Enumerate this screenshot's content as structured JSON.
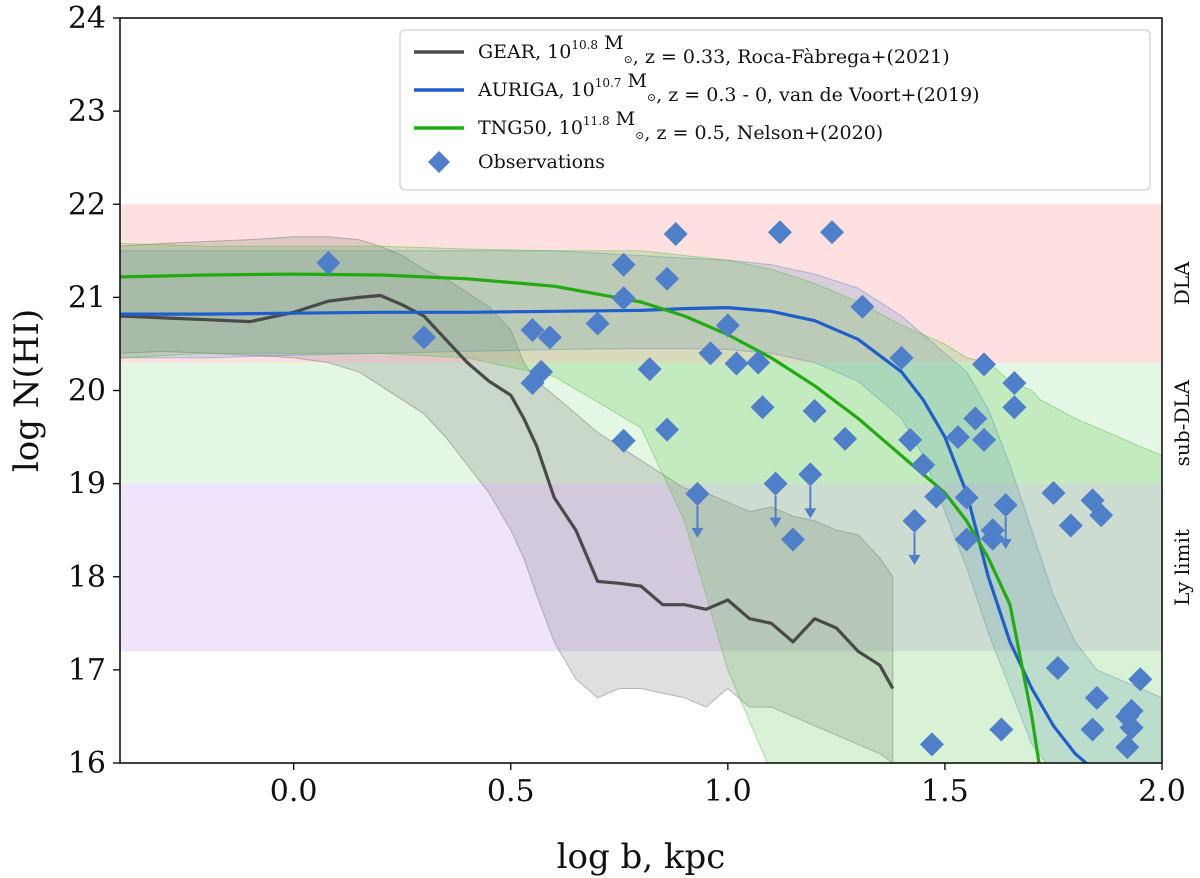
{
  "chart_data": {
    "type": "line",
    "xlabel": "log b, kpc",
    "ylabel": "log N(HI)",
    "xlim": [
      -0.4,
      2.0
    ],
    "ylim": [
      16,
      24
    ],
    "xticks": [
      0.0,
      0.5,
      1.0,
      1.5,
      2.0
    ],
    "xtick_labels": [
      "0.0",
      "0.5",
      "1.0",
      "1.5",
      "2.0"
    ],
    "yticks": [
      16,
      17,
      18,
      19,
      20,
      21,
      22,
      23,
      24
    ],
    "ytick_labels": [
      "16",
      "17",
      "18",
      "19",
      "20",
      "21",
      "22",
      "23",
      "24"
    ],
    "bands": [
      {
        "name": "DLA",
        "label": "DLA",
        "y0": 20.3,
        "y1": 22.0,
        "color": "#ffe0e0"
      },
      {
        "name": "sub-DLA",
        "label": "sub-DLA",
        "y0": 19.0,
        "y1": 20.3,
        "color": "#e4f7e4"
      },
      {
        "name": "Ly limit",
        "label": "Ly limit",
        "y0": 17.2,
        "y1": 19.0,
        "color": "#efe4fb"
      }
    ],
    "series": [
      {
        "name": "GEAR",
        "color": "#4a4a4a",
        "legend": {
          "prefix": "GEAR, 10",
          "sup": "10.8",
          "mid": " M",
          "sub": "⊙",
          "suffix": ", z = 0.33, Roca-Fàbrega+(2021)"
        },
        "x": [
          -0.4,
          -0.3,
          -0.2,
          -0.1,
          0.0,
          0.08,
          0.15,
          0.2,
          0.25,
          0.3,
          0.35,
          0.4,
          0.45,
          0.5,
          0.53,
          0.56,
          0.6,
          0.65,
          0.7,
          0.75,
          0.8,
          0.85,
          0.9,
          0.95,
          1.0,
          1.05,
          1.1,
          1.15,
          1.2,
          1.25,
          1.3,
          1.35,
          1.38
        ],
        "y": [
          20.8,
          20.78,
          20.76,
          20.74,
          20.84,
          20.96,
          21.0,
          21.02,
          20.92,
          20.8,
          20.55,
          20.3,
          20.1,
          19.95,
          19.7,
          19.4,
          18.85,
          18.5,
          17.95,
          17.93,
          17.9,
          17.7,
          17.7,
          17.65,
          17.75,
          17.55,
          17.5,
          17.3,
          17.55,
          17.45,
          17.2,
          17.05,
          16.8
        ],
        "band_upper": [
          21.55,
          21.58,
          21.6,
          21.62,
          21.65,
          21.65,
          21.62,
          21.55,
          21.45,
          21.3,
          21.2,
          21.05,
          20.9,
          20.65,
          20.3,
          20.1,
          19.95,
          19.75,
          19.55,
          19.4,
          19.25,
          19.1,
          18.95,
          18.9,
          18.8,
          18.7,
          18.75,
          18.65,
          18.6,
          18.5,
          18.45,
          18.2,
          18.0
        ],
        "band_lower": [
          20.4,
          20.42,
          20.4,
          20.38,
          20.35,
          20.3,
          20.2,
          20.05,
          19.9,
          19.75,
          19.5,
          19.2,
          18.9,
          18.5,
          18.2,
          17.8,
          17.3,
          16.9,
          16.7,
          16.8,
          16.8,
          16.75,
          16.7,
          16.6,
          16.8,
          16.6,
          16.6,
          16.5,
          16.4,
          16.3,
          16.2,
          16.1,
          16.0
        ]
      },
      {
        "name": "AURIGA",
        "color": "#1f5fcc",
        "legend": {
          "prefix": "AURIGA, 10",
          "sup": "10.7",
          "mid": " M",
          "sub": "⊙",
          "suffix": ", z = 0.3 - 0, van de Voort+(2019)"
        },
        "x": [
          -0.4,
          -0.2,
          0.0,
          0.2,
          0.4,
          0.6,
          0.8,
          0.9,
          1.0,
          1.1,
          1.2,
          1.3,
          1.4,
          1.45,
          1.5,
          1.55,
          1.6,
          1.65,
          1.7,
          1.75,
          1.8,
          1.85
        ],
        "y": [
          20.82,
          20.82,
          20.83,
          20.84,
          20.84,
          20.85,
          20.86,
          20.88,
          20.89,
          20.85,
          20.75,
          20.55,
          20.2,
          19.9,
          19.5,
          18.9,
          18.0,
          17.3,
          16.8,
          16.4,
          16.1,
          15.9
        ],
        "band_upper": [
          21.5,
          21.5,
          21.5,
          21.5,
          21.5,
          21.5,
          21.45,
          21.42,
          21.4,
          21.35,
          21.25,
          21.1,
          20.8,
          20.6,
          20.4,
          20.2,
          19.8,
          19.2,
          18.5,
          17.8,
          17.3,
          17.0
        ],
        "band_lower": [
          20.35,
          20.35,
          20.38,
          20.4,
          20.42,
          20.44,
          20.45,
          20.45,
          20.44,
          20.4,
          20.3,
          20.1,
          19.7,
          19.3,
          18.7,
          18.1,
          17.4,
          16.8,
          16.2,
          15.9,
          15.8,
          15.7
        ]
      },
      {
        "name": "TNG50",
        "color": "#22aa11",
        "legend": {
          "prefix": "TNG50, 10",
          "sup": "11.8",
          "mid": " M",
          "sub": "⊙",
          "suffix": ", z = 0.5, Nelson+(2020)"
        },
        "x": [
          -0.4,
          -0.2,
          0.0,
          0.2,
          0.4,
          0.6,
          0.8,
          0.9,
          1.0,
          1.1,
          1.2,
          1.3,
          1.4,
          1.5,
          1.55,
          1.6,
          1.65,
          1.7,
          1.72
        ],
        "y": [
          21.22,
          21.24,
          21.25,
          21.24,
          21.2,
          21.12,
          20.95,
          20.8,
          20.6,
          20.35,
          20.05,
          19.7,
          19.3,
          18.9,
          18.6,
          18.2,
          17.7,
          16.5,
          15.9
        ],
        "band_upper": [
          21.58,
          21.55,
          21.55,
          21.55,
          21.52,
          21.5,
          21.5,
          21.45,
          21.4,
          21.3,
          21.15,
          20.95,
          20.7,
          20.5,
          20.35,
          20.3,
          20.1,
          20.0,
          19.9
        ],
        "band_lower": [
          20.35,
          20.4,
          20.4,
          20.4,
          20.35,
          20.15,
          19.6,
          18.6,
          17.0,
          15.9,
          15.9,
          15.9,
          15.9,
          15.9,
          15.9,
          15.9,
          15.9,
          15.9,
          15.9
        ]
      }
    ],
    "extra_band_points": {
      "tng_upper_tail": {
        "x": [
          1.72,
          1.8,
          1.9,
          2.0
        ],
        "y": [
          19.85,
          19.7,
          19.5,
          19.3
        ]
      },
      "tng_lower_tail": {
        "x": [
          1.72,
          1.8,
          1.9,
          2.0
        ],
        "y": [
          15.9,
          15.9,
          15.9,
          15.9
        ]
      },
      "auriga_upper_tail": {
        "x": [
          1.85,
          1.9,
          2.0
        ],
        "y": [
          17.0,
          16.9,
          16.7
        ]
      },
      "auriga_lower_tail": {
        "x": [
          1.85,
          1.9,
          2.0
        ],
        "y": [
          15.7,
          15.7,
          15.7
        ]
      }
    },
    "observations": {
      "name": "Observations",
      "legend": "Observations",
      "color": "#4f7fc8",
      "points": [
        {
          "x": 0.08,
          "y": 21.37
        },
        {
          "x": 0.3,
          "y": 20.57
        },
        {
          "x": 0.55,
          "y": 20.65
        },
        {
          "x": 0.55,
          "y": 20.08
        },
        {
          "x": 0.57,
          "y": 20.2
        },
        {
          "x": 0.59,
          "y": 20.57
        },
        {
          "x": 0.7,
          "y": 20.72
        },
        {
          "x": 0.76,
          "y": 21.35
        },
        {
          "x": 0.76,
          "y": 20.99
        },
        {
          "x": 0.76,
          "y": 19.46
        },
        {
          "x": 0.82,
          "y": 20.23
        },
        {
          "x": 0.86,
          "y": 21.2
        },
        {
          "x": 0.86,
          "y": 19.58
        },
        {
          "x": 0.88,
          "y": 21.68
        },
        {
          "x": 0.93,
          "y": 18.89,
          "upper_limit": true
        },
        {
          "x": 0.96,
          "y": 20.4
        },
        {
          "x": 1.0,
          "y": 20.7
        },
        {
          "x": 1.02,
          "y": 20.29
        },
        {
          "x": 1.07,
          "y": 20.3
        },
        {
          "x": 1.08,
          "y": 19.82
        },
        {
          "x": 1.11,
          "y": 19.0,
          "upper_limit": true
        },
        {
          "x": 1.12,
          "y": 21.7
        },
        {
          "x": 1.15,
          "y": 18.4
        },
        {
          "x": 1.19,
          "y": 19.1,
          "upper_limit": true
        },
        {
          "x": 1.2,
          "y": 19.78
        },
        {
          "x": 1.24,
          "y": 21.7
        },
        {
          "x": 1.27,
          "y": 19.48
        },
        {
          "x": 1.31,
          "y": 20.9
        },
        {
          "x": 1.4,
          "y": 20.35
        },
        {
          "x": 1.42,
          "y": 19.47
        },
        {
          "x": 1.43,
          "y": 18.6,
          "upper_limit": true
        },
        {
          "x": 1.45,
          "y": 19.2
        },
        {
          "x": 1.47,
          "y": 16.2
        },
        {
          "x": 1.48,
          "y": 18.86
        },
        {
          "x": 1.53,
          "y": 19.5
        },
        {
          "x": 1.55,
          "y": 18.4
        },
        {
          "x": 1.55,
          "y": 18.85
        },
        {
          "x": 1.57,
          "y": 19.7
        },
        {
          "x": 1.59,
          "y": 20.28
        },
        {
          "x": 1.59,
          "y": 19.47
        },
        {
          "x": 1.61,
          "y": 18.5
        },
        {
          "x": 1.61,
          "y": 18.41
        },
        {
          "x": 1.63,
          "y": 16.36
        },
        {
          "x": 1.64,
          "y": 18.77,
          "upper_limit": true
        },
        {
          "x": 1.66,
          "y": 20.08
        },
        {
          "x": 1.66,
          "y": 19.82
        },
        {
          "x": 1.75,
          "y": 18.9
        },
        {
          "x": 1.76,
          "y": 17.02
        },
        {
          "x": 1.79,
          "y": 18.55
        },
        {
          "x": 1.84,
          "y": 18.82
        },
        {
          "x": 1.84,
          "y": 16.36
        },
        {
          "x": 1.85,
          "y": 16.7
        },
        {
          "x": 1.86,
          "y": 18.66
        },
        {
          "x": 1.92,
          "y": 16.17
        },
        {
          "x": 1.92,
          "y": 16.5
        },
        {
          "x": 1.93,
          "y": 16.38
        },
        {
          "x": 1.93,
          "y": 16.56
        },
        {
          "x": 1.95,
          "y": 16.9
        }
      ]
    }
  }
}
